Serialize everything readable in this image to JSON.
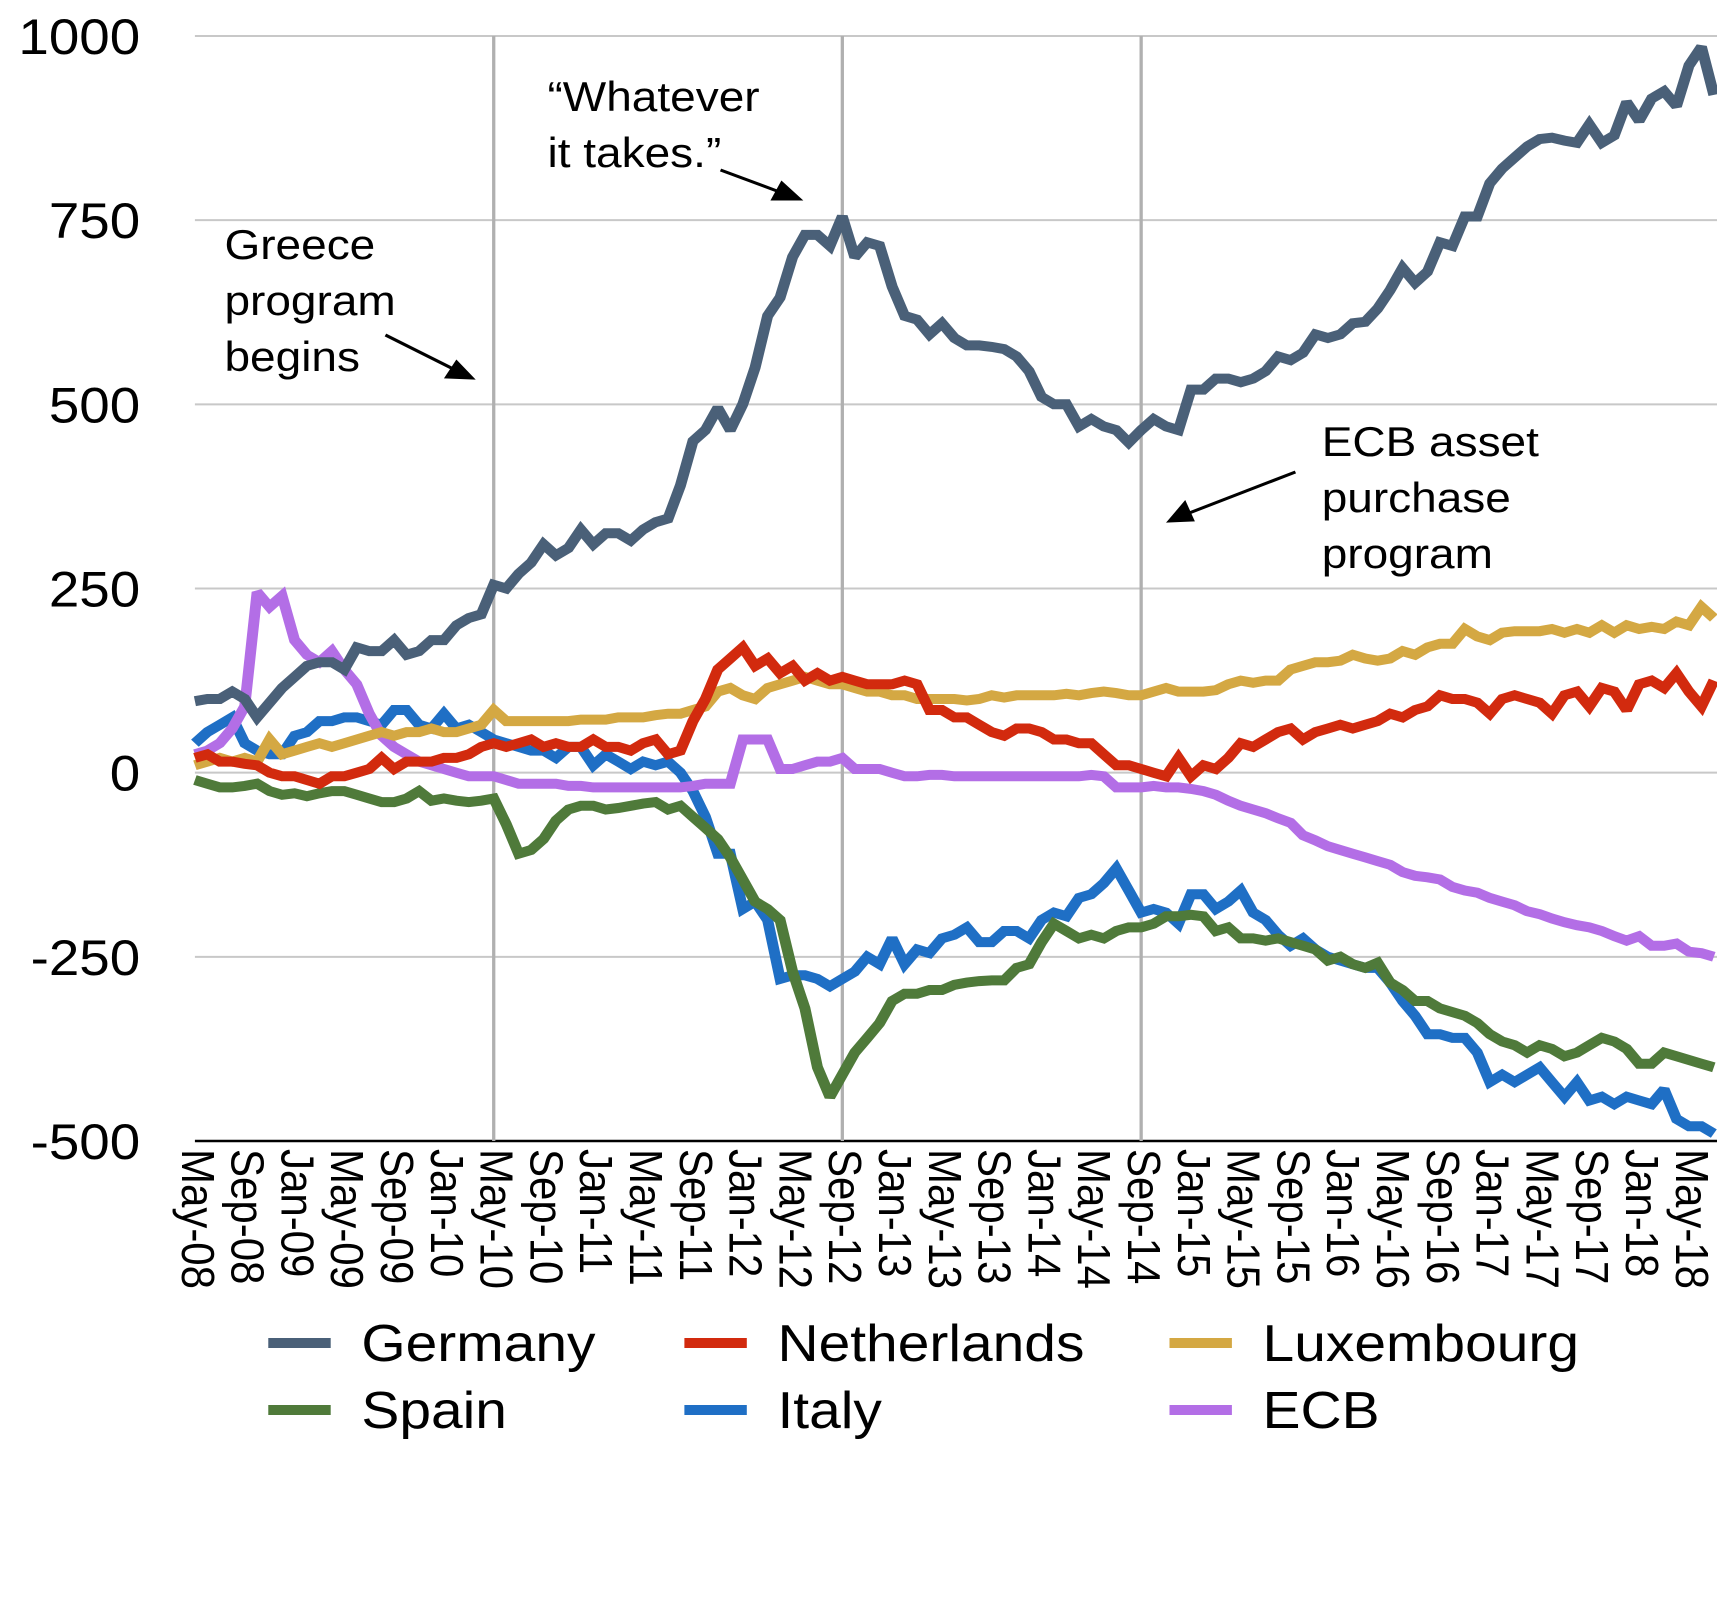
{
  "chart_data": {
    "type": "line",
    "categories": [
      "May-08",
      null,
      null,
      null,
      "Sep-08",
      null,
      null,
      null,
      "Jan-09",
      null,
      null,
      null,
      "May-09",
      null,
      null,
      null,
      "Sep-09",
      null,
      null,
      null,
      "Jan-10",
      null,
      null,
      null,
      "May-10",
      null,
      null,
      null,
      "Sep-10",
      null,
      null,
      null,
      "Jan-11",
      null,
      null,
      null,
      "May-11",
      null,
      null,
      null,
      "Sep-11",
      null,
      null,
      null,
      "Jan-12",
      null,
      null,
      null,
      "May-12",
      null,
      null,
      null,
      "Sep-12",
      null,
      null,
      null,
      "Jan-13",
      null,
      null,
      null,
      "May-13",
      null,
      null,
      null,
      "Sep-13",
      null,
      null,
      null,
      "Jan-14",
      null,
      null,
      null,
      "May-14",
      null,
      null,
      null,
      "Sep-14",
      null,
      null,
      null,
      "Jan-15",
      null,
      null,
      null,
      "May-15",
      null,
      null,
      null,
      "Sep-15",
      null,
      null,
      null,
      "Jan-16",
      null,
      null,
      null,
      "May-16",
      null,
      null,
      null,
      "Sep-16",
      null,
      null,
      null,
      "Jan-17",
      null,
      null,
      null,
      "May-17",
      null,
      null,
      null,
      "Sep-17",
      null,
      null,
      null,
      "Jan-18",
      null,
      null,
      null,
      "May-18",
      null,
      null
    ],
    "series": [
      {
        "name": "Germany",
        "color": "#4a6078",
        "values": [
          97,
          100,
          100,
          110,
          100,
          75,
          95,
          115,
          130,
          145,
          150,
          150,
          140,
          170,
          165,
          165,
          180,
          160,
          165,
          180,
          180,
          200,
          210,
          215,
          255,
          250,
          270,
          285,
          310,
          295,
          305,
          330,
          310,
          325,
          325,
          315,
          330,
          340,
          345,
          390,
          450,
          465,
          495,
          465,
          500,
          550,
          620,
          645,
          700,
          730,
          730,
          715,
          755,
          700,
          720,
          715,
          660,
          620,
          615,
          595,
          610,
          590,
          580,
          580,
          578,
          575,
          565,
          545,
          510,
          500,
          500,
          470,
          480,
          470,
          465,
          448,
          465,
          480,
          470,
          465,
          520,
          520,
          535,
          535,
          530,
          535,
          545,
          565,
          560,
          570,
          595,
          590,
          595,
          610,
          612,
          630,
          655,
          685,
          665,
          680,
          720,
          715,
          755,
          755,
          800,
          820,
          835,
          850,
          860,
          862,
          858,
          855,
          880,
          855,
          865,
          910,
          885,
          915,
          925,
          905,
          960,
          985,
          920
        ]
      },
      {
        "name": "Netherlands",
        "color": "#d22a0e",
        "values": [
          20,
          25,
          15,
          15,
          12,
          10,
          0,
          -5,
          -5,
          -10,
          -15,
          -5,
          -5,
          0,
          5,
          20,
          5,
          15,
          15,
          15,
          20,
          20,
          25,
          35,
          40,
          35,
          40,
          45,
          35,
          40,
          35,
          35,
          45,
          35,
          35,
          30,
          40,
          45,
          25,
          30,
          70,
          100,
          140,
          155,
          170,
          145,
          155,
          135,
          145,
          125,
          135,
          125,
          130,
          125,
          120,
          120,
          120,
          125,
          120,
          85,
          85,
          75,
          75,
          65,
          55,
          50,
          60,
          60,
          55,
          45,
          45,
          40,
          40,
          25,
          10,
          10,
          5,
          0,
          -5,
          20,
          -5,
          10,
          5,
          20,
          40,
          35,
          45,
          55,
          60,
          45,
          55,
          60,
          65,
          60,
          65,
          70,
          80,
          75,
          85,
          90,
          105,
          100,
          100,
          95,
          80,
          100,
          105,
          100,
          95,
          80,
          105,
          110,
          90,
          115,
          110,
          85,
          120,
          125,
          115,
          135,
          110,
          90,
          125
        ]
      },
      {
        "name": "Luxembourg",
        "color": "#d4a843",
        "values": [
          10,
          15,
          20,
          15,
          20,
          15,
          45,
          25,
          30,
          35,
          40,
          35,
          40,
          45,
          50,
          55,
          50,
          55,
          55,
          60,
          55,
          55,
          60,
          65,
          85,
          70,
          70,
          70,
          70,
          70,
          70,
          72,
          72,
          72,
          75,
          75,
          75,
          78,
          80,
          80,
          85,
          90,
          110,
          115,
          105,
          100,
          115,
          120,
          125,
          130,
          125,
          120,
          120,
          115,
          110,
          110,
          105,
          105,
          100,
          100,
          100,
          100,
          98,
          100,
          105,
          102,
          105,
          105,
          105,
          105,
          107,
          105,
          108,
          110,
          108,
          105,
          105,
          110,
          115,
          110,
          110,
          110,
          112,
          120,
          125,
          122,
          125,
          125,
          140,
          145,
          150,
          150,
          152,
          160,
          155,
          152,
          155,
          165,
          160,
          170,
          175,
          175,
          195,
          185,
          180,
          190,
          192,
          192,
          192,
          195,
          190,
          195,
          190,
          200,
          190,
          200,
          195,
          198,
          195,
          205,
          200,
          225,
          210
        ]
      },
      {
        "name": "Spain",
        "color": "#4f7a3a",
        "values": [
          -10,
          -15,
          -20,
          -20,
          -18,
          -15,
          -25,
          -30,
          -28,
          -32,
          -28,
          -25,
          -25,
          -30,
          -35,
          -40,
          -40,
          -35,
          -25,
          -38,
          -35,
          -38,
          -40,
          -38,
          -35,
          -70,
          -110,
          -105,
          -90,
          -65,
          -50,
          -45,
          -45,
          -50,
          -48,
          -45,
          -42,
          -40,
          -50,
          -45,
          -60,
          -75,
          -90,
          -115,
          -145,
          -175,
          -185,
          -200,
          -270,
          -320,
          -400,
          -440,
          -410,
          -380,
          -360,
          -340,
          -310,
          -300,
          -300,
          -295,
          -295,
          -288,
          -285,
          -283,
          -282,
          -282,
          -265,
          -260,
          -230,
          -205,
          -215,
          -225,
          -220,
          -225,
          -215,
          -210,
          -210,
          -205,
          -195,
          -195,
          -193,
          -195,
          -215,
          -210,
          -225,
          -225,
          -228,
          -225,
          -230,
          -235,
          -240,
          -255,
          -250,
          -260,
          -265,
          -258,
          -285,
          -295,
          -310,
          -310,
          -320,
          -325,
          -330,
          -340,
          -355,
          -365,
          -370,
          -380,
          -370,
          -375,
          -385,
          -380,
          -370,
          -360,
          -365,
          -375,
          -395,
          -395,
          -380,
          -385,
          -390,
          -395,
          -400
        ]
      },
      {
        "name": "Italy",
        "color": "#1f6fc5",
        "values": [
          40,
          55,
          65,
          75,
          40,
          30,
          25,
          25,
          50,
          55,
          70,
          70,
          75,
          75,
          70,
          65,
          85,
          85,
          65,
          60,
          80,
          60,
          65,
          55,
          45,
          40,
          35,
          30,
          30,
          20,
          35,
          35,
          10,
          25,
          15,
          5,
          15,
          10,
          15,
          0,
          -25,
          -60,
          -110,
          -110,
          -185,
          -175,
          -200,
          -280,
          -275,
          -275,
          -280,
          -290,
          -280,
          -270,
          -250,
          -260,
          -225,
          -260,
          -240,
          -245,
          -225,
          -220,
          -210,
          -230,
          -230,
          -215,
          -215,
          -225,
          -200,
          -190,
          -195,
          -170,
          -165,
          -150,
          -130,
          -160,
          -190,
          -185,
          -190,
          -205,
          -165,
          -165,
          -185,
          -175,
          -160,
          -190,
          -200,
          -220,
          -235,
          -225,
          -240,
          -250,
          -255,
          -260,
          -265,
          -265,
          -285,
          -310,
          -330,
          -355,
          -355,
          -360,
          -360,
          -380,
          -420,
          -410,
          -420,
          -410,
          -400,
          -420,
          -440,
          -420,
          -445,
          -440,
          -450,
          -440,
          -445,
          -450,
          -430,
          -470,
          -480,
          -480,
          -490
        ]
      },
      {
        "name": "ECB",
        "color": "#b36ee6",
        "values": [
          25,
          30,
          40,
          60,
          90,
          245,
          225,
          240,
          180,
          160,
          150,
          165,
          140,
          120,
          80,
          50,
          35,
          25,
          15,
          10,
          5,
          0,
          -5,
          -5,
          -5,
          -10,
          -15,
          -15,
          -15,
          -15,
          -18,
          -18,
          -20,
          -20,
          -20,
          -20,
          -20,
          -20,
          -20,
          -20,
          -18,
          -15,
          -15,
          -15,
          45,
          45,
          45,
          5,
          5,
          10,
          15,
          15,
          20,
          5,
          5,
          5,
          0,
          -5,
          -5,
          -3,
          -3,
          -5,
          -5,
          -5,
          -5,
          -5,
          -5,
          -5,
          -5,
          -5,
          -5,
          -5,
          -3,
          -5,
          -20,
          -20,
          -20,
          -18,
          -20,
          -20,
          -22,
          -25,
          -30,
          -38,
          -45,
          -50,
          -55,
          -62,
          -68,
          -85,
          -92,
          -100,
          -105,
          -110,
          -115,
          -120,
          -125,
          -135,
          -140,
          -142,
          -145,
          -155,
          -160,
          -163,
          -170,
          -175,
          -180,
          -188,
          -192,
          -198,
          -203,
          -207,
          -210,
          -215,
          -222,
          -228,
          -222,
          -235,
          -235,
          -232,
          -243,
          -245,
          -250
        ]
      }
    ],
    "ylim": [
      -500,
      1000
    ],
    "yticks": [
      -500,
      -250,
      0,
      250,
      500,
      750,
      1000
    ],
    "grid": true,
    "vlines": [
      24,
      52,
      76
    ],
    "annotations": [
      {
        "lines": [
          "“Whatever",
          "it takes.”"
        ]
      },
      {
        "lines": [
          "Greece",
          "program",
          "begins"
        ]
      },
      {
        "lines": [
          "ECB asset",
          "purchase",
          "program"
        ]
      }
    ],
    "legend": "bottom"
  }
}
